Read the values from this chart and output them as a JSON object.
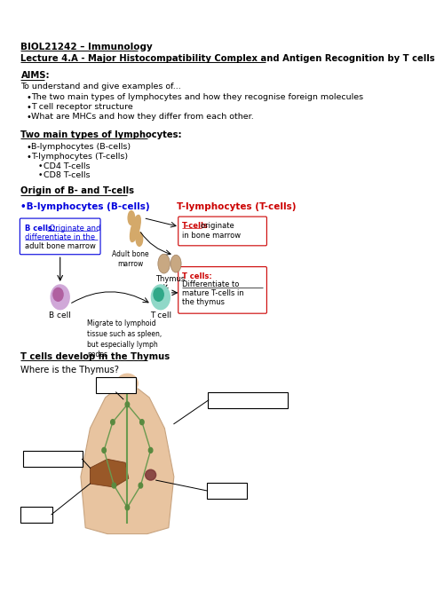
{
  "bg_color": "#ffffff",
  "title1": "BIOL21242 – Immunology",
  "title2": "Lecture 4.A - Major Histocompatibility Complex and Antigen Recognition by T cells",
  "aims_header": "AIMS:",
  "aims_intro": "To understand and give examples of...",
  "aims_bullets": [
    "The two main types of lymphocytes and how they recognise foreign molecules",
    "T cell receptor structure",
    "What are MHCs and how they differ from each other."
  ],
  "types_header": "Two main types of lymphocytes:",
  "types_bullets": [
    "B-lymphocytes (B-cells)",
    "T-lymphocytes (T-cells)"
  ],
  "sub_bullets": [
    "CD4 T-cells",
    "CD8 T-cells"
  ],
  "origin_header": "Origin of B- and T-cells",
  "thymus_header": "T cells develop in the Thymus",
  "thymus_subheader": "Where is the Thymus?"
}
